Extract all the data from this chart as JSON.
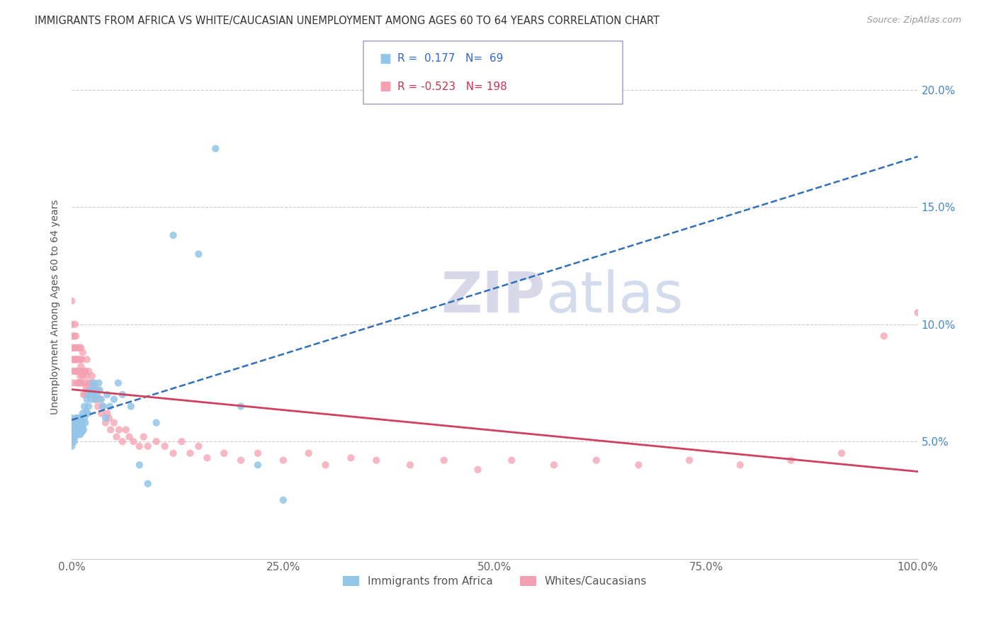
{
  "title": "IMMIGRANTS FROM AFRICA VS WHITE/CAUCASIAN UNEMPLOYMENT AMONG AGES 60 TO 64 YEARS CORRELATION CHART",
  "source": "Source: ZipAtlas.com",
  "ylabel": "Unemployment Among Ages 60 to 64 years",
  "xlim": [
    0,
    1.0
  ],
  "ylim": [
    0.0,
    0.215
  ],
  "blue_R": 0.177,
  "blue_N": 69,
  "pink_R": -0.523,
  "pink_N": 198,
  "blue_color": "#92C5E8",
  "pink_color": "#F4A0B0",
  "trend_blue_color": "#3070B8",
  "trend_pink_color": "#D04060",
  "watermark": "ZIPatlas",
  "legend_label_blue": "Immigrants from Africa",
  "legend_label_pink": "Whites/Caucasians",
  "ytick_vals": [
    0.05,
    0.1,
    0.15,
    0.2
  ],
  "ytick_labels": [
    "5.0%",
    "10.0%",
    "15.0%",
    "20.0%"
  ],
  "xtick_vals": [
    0.0,
    0.25,
    0.5,
    0.75,
    1.0
  ],
  "xtick_labels": [
    "0.0%",
    "25.0%",
    "50.0%",
    "75.0%",
    "100.0%"
  ],
  "blue_scatter_x": [
    0.0,
    0.0,
    0.0,
    0.0,
    0.0,
    0.0,
    0.001,
    0.001,
    0.002,
    0.002,
    0.003,
    0.003,
    0.004,
    0.004,
    0.005,
    0.005,
    0.005,
    0.006,
    0.006,
    0.007,
    0.007,
    0.008,
    0.008,
    0.009,
    0.009,
    0.01,
    0.01,
    0.011,
    0.011,
    0.012,
    0.012,
    0.013,
    0.013,
    0.014,
    0.015,
    0.015,
    0.016,
    0.017,
    0.018,
    0.019,
    0.02,
    0.02,
    0.022,
    0.023,
    0.025,
    0.026,
    0.027,
    0.028,
    0.03,
    0.032,
    0.033,
    0.035,
    0.037,
    0.04,
    0.042,
    0.045,
    0.05,
    0.055,
    0.06,
    0.07,
    0.08,
    0.09,
    0.1,
    0.12,
    0.15,
    0.17,
    0.2,
    0.22,
    0.25
  ],
  "blue_scatter_y": [
    0.05,
    0.052,
    0.055,
    0.057,
    0.06,
    0.048,
    0.053,
    0.056,
    0.054,
    0.058,
    0.05,
    0.055,
    0.052,
    0.057,
    0.055,
    0.058,
    0.06,
    0.053,
    0.057,
    0.055,
    0.06,
    0.054,
    0.058,
    0.055,
    0.06,
    0.053,
    0.057,
    0.055,
    0.06,
    0.054,
    0.058,
    0.056,
    0.062,
    0.055,
    0.06,
    0.065,
    0.058,
    0.063,
    0.068,
    0.062,
    0.07,
    0.065,
    0.072,
    0.068,
    0.075,
    0.07,
    0.073,
    0.068,
    0.07,
    0.075,
    0.072,
    0.068,
    0.065,
    0.06,
    0.07,
    0.065,
    0.068,
    0.075,
    0.07,
    0.065,
    0.04,
    0.032,
    0.058,
    0.138,
    0.13,
    0.175,
    0.065,
    0.04,
    0.025
  ],
  "pink_scatter_x": [
    0.0,
    0.0,
    0.0,
    0.0,
    0.001,
    0.001,
    0.001,
    0.002,
    0.002,
    0.003,
    0.003,
    0.004,
    0.004,
    0.004,
    0.005,
    0.005,
    0.005,
    0.006,
    0.006,
    0.007,
    0.007,
    0.008,
    0.008,
    0.009,
    0.009,
    0.01,
    0.01,
    0.01,
    0.011,
    0.011,
    0.012,
    0.012,
    0.013,
    0.013,
    0.014,
    0.015,
    0.015,
    0.016,
    0.016,
    0.017,
    0.018,
    0.018,
    0.019,
    0.02,
    0.02,
    0.021,
    0.022,
    0.023,
    0.024,
    0.025,
    0.026,
    0.027,
    0.028,
    0.03,
    0.031,
    0.033,
    0.035,
    0.037,
    0.04,
    0.042,
    0.044,
    0.046,
    0.05,
    0.053,
    0.056,
    0.06,
    0.064,
    0.068,
    0.073,
    0.08,
    0.085,
    0.09,
    0.1,
    0.11,
    0.12,
    0.13,
    0.14,
    0.15,
    0.16,
    0.18,
    0.2,
    0.22,
    0.25,
    0.28,
    0.3,
    0.33,
    0.36,
    0.4,
    0.44,
    0.48,
    0.52,
    0.57,
    0.62,
    0.67,
    0.73,
    0.79,
    0.85,
    0.91,
    0.96,
    1.0
  ],
  "pink_scatter_y": [
    0.09,
    0.1,
    0.08,
    0.11,
    0.085,
    0.095,
    0.075,
    0.09,
    0.085,
    0.08,
    0.095,
    0.085,
    0.09,
    0.1,
    0.08,
    0.085,
    0.095,
    0.075,
    0.085,
    0.08,
    0.09,
    0.075,
    0.085,
    0.08,
    0.09,
    0.075,
    0.085,
    0.078,
    0.082,
    0.09,
    0.075,
    0.085,
    0.078,
    0.088,
    0.07,
    0.08,
    0.075,
    0.07,
    0.08,
    0.073,
    0.078,
    0.085,
    0.072,
    0.075,
    0.08,
    0.07,
    0.075,
    0.072,
    0.078,
    0.07,
    0.072,
    0.075,
    0.068,
    0.072,
    0.065,
    0.068,
    0.062,
    0.065,
    0.058,
    0.062,
    0.06,
    0.055,
    0.058,
    0.052,
    0.055,
    0.05,
    0.055,
    0.052,
    0.05,
    0.048,
    0.052,
    0.048,
    0.05,
    0.048,
    0.045,
    0.05,
    0.045,
    0.048,
    0.043,
    0.045,
    0.042,
    0.045,
    0.042,
    0.045,
    0.04,
    0.043,
    0.042,
    0.04,
    0.042,
    0.038,
    0.042,
    0.04,
    0.042,
    0.04,
    0.042,
    0.04,
    0.042,
    0.045,
    0.095,
    0.105
  ]
}
